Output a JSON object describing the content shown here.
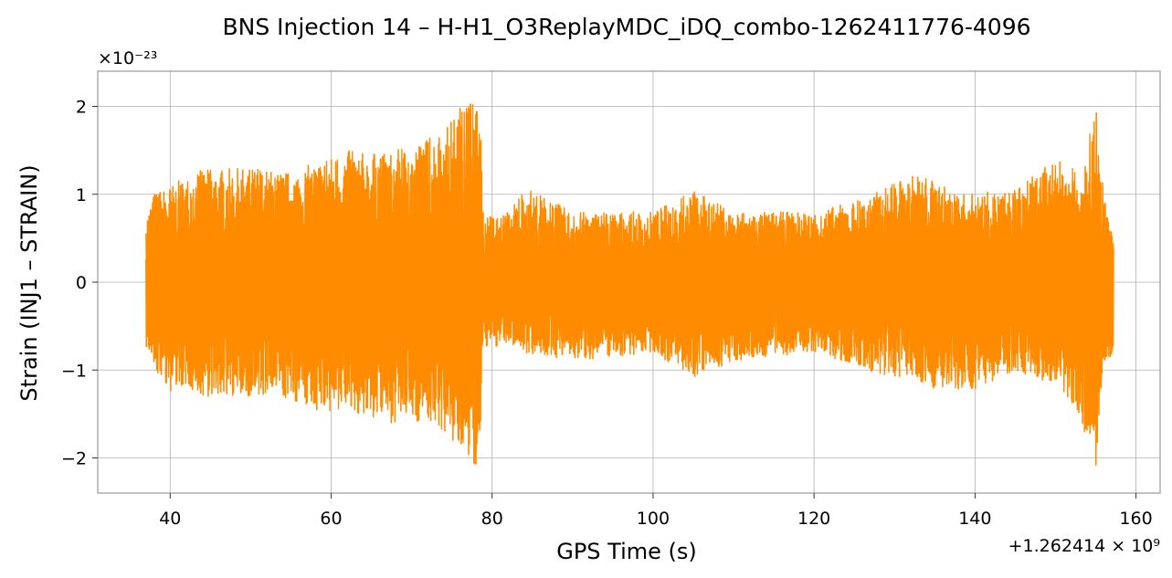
{
  "chart_data": {
    "type": "line",
    "title": "BNS Injection 14 – H-H1_O3ReplayMDC_iDQ_combo-1262411776-4096",
    "xlabel": "GPS Time (s)",
    "ylabel": "Strain (INJ1 – STRAIN)",
    "x_offset_text": "+1.262414 × 10⁹",
    "y_scale_text": "×10⁻²³",
    "xlim": [
      31,
      163
    ],
    "ylim": [
      -2.4,
      2.4
    ],
    "x_ticks": [
      40,
      60,
      80,
      100,
      120,
      140,
      160
    ],
    "y_ticks": [
      -2,
      -1,
      0,
      1,
      2
    ],
    "y_tick_labels": [
      "−2",
      "−1",
      "0",
      "1",
      "2"
    ],
    "grid": true,
    "series": [
      {
        "color": "#ff8c00",
        "x_range": [
          37.0,
          157.2
        ],
        "envelope": [
          {
            "x": 37.0,
            "max": 0.75,
            "min": -0.75
          },
          {
            "x": 38.0,
            "max": 1.02,
            "min": -1.0
          },
          {
            "x": 40.0,
            "max": 1.1,
            "min": -1.25
          },
          {
            "x": 42.0,
            "max": 1.2,
            "min": -1.2
          },
          {
            "x": 44.0,
            "max": 1.28,
            "min": -1.3
          },
          {
            "x": 50.0,
            "max": 1.3,
            "min": -1.3
          },
          {
            "x": 55.0,
            "max": 1.25,
            "min": -1.35
          },
          {
            "x": 59.0,
            "max": 1.4,
            "min": -1.5
          },
          {
            "x": 62.0,
            "max": 1.5,
            "min": -1.45
          },
          {
            "x": 66.0,
            "max": 1.45,
            "min": -1.6
          },
          {
            "x": 70.0,
            "max": 1.55,
            "min": -1.6
          },
          {
            "x": 73.0,
            "max": 1.7,
            "min": -1.6
          },
          {
            "x": 75.0,
            "max": 1.85,
            "min": -1.85
          },
          {
            "x": 77.0,
            "max": 2.17,
            "min": -2.1
          },
          {
            "x": 78.6,
            "max": 1.9,
            "min": -2.1
          },
          {
            "x": 78.8,
            "max": 0.8,
            "min": -0.8
          },
          {
            "x": 80.0,
            "max": 0.75,
            "min": -0.75
          },
          {
            "x": 82.0,
            "max": 0.8,
            "min": -0.7
          },
          {
            "x": 84.0,
            "max": 1.1,
            "min": -0.8
          },
          {
            "x": 90.0,
            "max": 0.8,
            "min": -0.9
          },
          {
            "x": 100.0,
            "max": 0.8,
            "min": -0.8
          },
          {
            "x": 105.0,
            "max": 1.05,
            "min": -1.1
          },
          {
            "x": 110.0,
            "max": 0.8,
            "min": -0.9
          },
          {
            "x": 120.0,
            "max": 0.8,
            "min": -0.8
          },
          {
            "x": 126.0,
            "max": 0.95,
            "min": -1.0
          },
          {
            "x": 133.0,
            "max": 1.25,
            "min": -1.15
          },
          {
            "x": 138.0,
            "max": 1.0,
            "min": -1.3
          },
          {
            "x": 145.0,
            "max": 1.05,
            "min": -1.0
          },
          {
            "x": 150.0,
            "max": 1.4,
            "min": -1.2
          },
          {
            "x": 153.0,
            "max": 1.25,
            "min": -1.5
          },
          {
            "x": 155.0,
            "max": 2.0,
            "min": -2.18
          },
          {
            "x": 156.0,
            "max": 1.0,
            "min": -1.0
          },
          {
            "x": 157.2,
            "max": 0.5,
            "min": -0.95
          }
        ]
      }
    ]
  }
}
